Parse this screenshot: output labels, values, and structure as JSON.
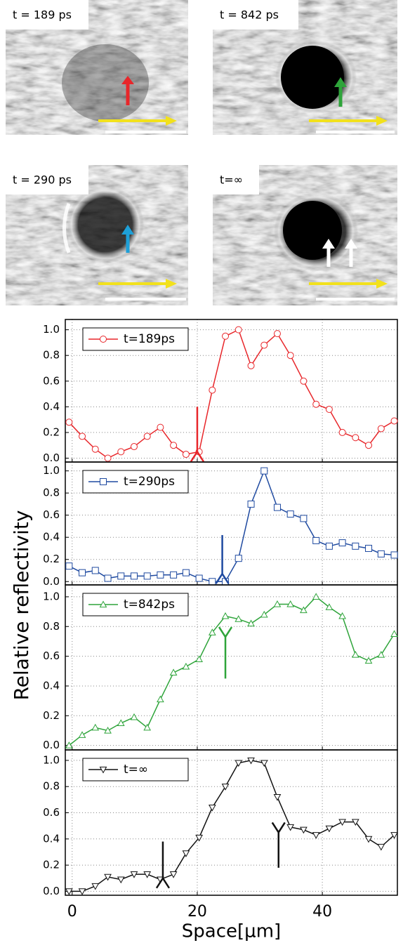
{
  "images": [
    {
      "label": "t = 189 ps"
    },
    {
      "label": "t = 842 ps"
    },
    {
      "label": "t = 290 ps"
    },
    {
      "label": "t=∞"
    }
  ],
  "y_label": "Relative reflectivity",
  "chart_data": [
    {
      "type": "line",
      "marker": "circle",
      "x": [
        -0.5,
        1.6,
        3.7,
        5.7,
        7.8,
        9.9,
        12.0,
        14.1,
        16.2,
        18.2,
        20.3,
        22.4,
        24.5,
        26.6,
        28.6,
        30.7,
        32.8,
        34.9,
        37.0,
        39.0,
        41.1,
        43.2,
        45.3,
        47.4,
        49.4,
        51.5
      ],
      "series": [
        {
          "name": "t=189ps",
          "color": "#e8262a",
          "values": [
            0.28,
            0.17,
            0.07,
            0.0,
            0.05,
            0.09,
            0.17,
            0.24,
            0.1,
            0.03,
            0.05,
            0.53,
            0.95,
            1.0,
            0.72,
            0.88,
            0.97,
            0.8,
            0.6,
            0.42,
            0.38,
            0.2,
            0.16,
            0.1,
            0.23,
            0.29
          ]
        }
      ],
      "xlim": [
        -1.1,
        52
      ],
      "xticks": [
        0,
        20,
        40
      ],
      "ylim": [
        -0.03,
        1.08
      ],
      "yticks": [
        {
          "value": 0,
          "label": "0.0"
        },
        0.2,
        0.4,
        0.6,
        0.8,
        {
          "value": 1,
          "label": "1.0"
        }
      ],
      "grid": true
    },
    {
      "type": "line",
      "marker": "square",
      "x": [
        -0.5,
        1.6,
        3.7,
        5.7,
        7.8,
        9.9,
        12.0,
        14.1,
        16.2,
        18.2,
        20.3,
        22.4,
        24.5,
        26.6,
        28.6,
        30.7,
        32.8,
        34.9,
        37.0,
        39.0,
        41.1,
        43.2,
        45.3,
        47.4,
        49.4,
        51.5
      ],
      "series": [
        {
          "name": "t=290ps",
          "color": "#1f4aa0",
          "values": [
            0.14,
            0.08,
            0.1,
            0.03,
            0.05,
            0.05,
            0.05,
            0.06,
            0.06,
            0.08,
            0.03,
            0.0,
            0.0,
            0.21,
            0.7,
            1.0,
            0.67,
            0.61,
            0.57,
            0.37,
            0.32,
            0.35,
            0.32,
            0.3,
            0.25,
            0.24
          ]
        }
      ],
      "xlim": [
        -1.1,
        52
      ],
      "xticks": [
        0,
        20,
        40
      ],
      "ylim": [
        -0.03,
        1.08
      ],
      "yticks": [
        {
          "value": 0,
          "label": "0.0"
        },
        0.2,
        0.4,
        0.6,
        0.8,
        {
          "value": 1,
          "label": "1.0"
        }
      ],
      "grid": true
    },
    {
      "type": "line",
      "marker": "triangle-up",
      "x": [
        -0.5,
        1.6,
        3.7,
        5.7,
        7.8,
        9.9,
        12.0,
        14.1,
        16.2,
        18.2,
        20.3,
        22.4,
        24.5,
        26.6,
        28.6,
        30.7,
        32.8,
        34.9,
        37.0,
        39.0,
        41.1,
        43.2,
        45.3,
        47.4,
        49.4,
        51.5
      ],
      "series": [
        {
          "name": "t=842ps",
          "color": "#2ea43a",
          "values": [
            0.0,
            0.07,
            0.12,
            0.1,
            0.15,
            0.19,
            0.12,
            0.31,
            0.49,
            0.53,
            0.58,
            0.76,
            0.87,
            0.85,
            0.82,
            0.88,
            0.95,
            0.95,
            0.91,
            1.0,
            0.93,
            0.87,
            0.61,
            0.57,
            0.61,
            0.75
          ]
        }
      ],
      "xlim": [
        -1.1,
        52
      ],
      "xticks": [
        0,
        20,
        40
      ],
      "ylim": [
        -0.03,
        1.08
      ],
      "yticks": [
        {
          "value": 0,
          "label": "0.0"
        },
        0.2,
        0.4,
        0.6,
        0.8,
        {
          "value": 1,
          "label": "1.0"
        }
      ],
      "grid": true
    },
    {
      "type": "line",
      "marker": "triangle-down",
      "x": [
        -0.5,
        1.6,
        3.7,
        5.7,
        7.8,
        9.9,
        12.0,
        14.1,
        16.2,
        18.2,
        20.3,
        22.4,
        24.5,
        26.6,
        28.6,
        30.7,
        32.8,
        34.9,
        37.0,
        39.0,
        41.1,
        43.2,
        45.3,
        47.4,
        49.4,
        51.5
      ],
      "series": [
        {
          "name": "t=∞",
          "color": "#111111",
          "values": [
            0.0,
            0.0,
            0.04,
            0.11,
            0.09,
            0.13,
            0.13,
            0.09,
            0.13,
            0.29,
            0.41,
            0.64,
            0.8,
            0.98,
            1.0,
            0.98,
            0.72,
            0.49,
            0.47,
            0.43,
            0.48,
            0.53,
            0.53,
            0.4,
            0.34,
            0.43
          ]
        }
      ],
      "xlim": [
        -1.1,
        52
      ],
      "xticks": [
        0,
        20,
        40
      ],
      "x_label": "Space[μm]",
      "ylim": [
        -0.03,
        1.08
      ],
      "yticks": [
        {
          "value": 0,
          "label": "0.0"
        },
        0.2,
        0.4,
        0.6,
        0.8,
        {
          "value": 1,
          "label": "1.0"
        }
      ],
      "grid": true
    }
  ]
}
